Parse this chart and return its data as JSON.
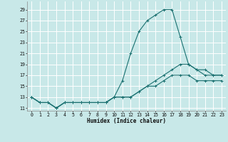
{
  "xlabel": "Humidex (Indice chaleur)",
  "background_color": "#c8e8e8",
  "grid_color": "#ffffff",
  "line_color": "#1a7070",
  "xlim": [
    -0.5,
    23.5
  ],
  "ylim": [
    10.5,
    30.5
  ],
  "xticks": [
    0,
    1,
    2,
    3,
    4,
    5,
    6,
    7,
    8,
    9,
    10,
    11,
    12,
    13,
    14,
    15,
    16,
    17,
    18,
    19,
    20,
    21,
    22,
    23
  ],
  "yticks": [
    11,
    13,
    15,
    17,
    19,
    21,
    23,
    25,
    27,
    29
  ],
  "line1_x": [
    0,
    1,
    2,
    3,
    4,
    5,
    6,
    7,
    8,
    9,
    10,
    11,
    12,
    13,
    14,
    15,
    16,
    17,
    18,
    19,
    20,
    21,
    22,
    23
  ],
  "line1_y": [
    13,
    12,
    12,
    11,
    12,
    12,
    12,
    12,
    12,
    12,
    13,
    16,
    21,
    25,
    27,
    28,
    29,
    29,
    24,
    19,
    18,
    18,
    17,
    17
  ],
  "line2_x": [
    0,
    1,
    2,
    3,
    4,
    5,
    6,
    7,
    8,
    9,
    10,
    11,
    12,
    13,
    14,
    15,
    16,
    17,
    18,
    19,
    20,
    21,
    22,
    23
  ],
  "line2_y": [
    13,
    12,
    12,
    11,
    12,
    12,
    12,
    12,
    12,
    12,
    13,
    13,
    13,
    14,
    15,
    16,
    17,
    18,
    19,
    19,
    18,
    17,
    17,
    17
  ],
  "line3_x": [
    0,
    1,
    2,
    3,
    4,
    5,
    6,
    7,
    8,
    9,
    10,
    11,
    12,
    13,
    14,
    15,
    16,
    17,
    18,
    19,
    20,
    21,
    22,
    23
  ],
  "line3_y": [
    13,
    12,
    12,
    11,
    12,
    12,
    12,
    12,
    12,
    12,
    13,
    13,
    13,
    14,
    15,
    15,
    16,
    17,
    17,
    17,
    16,
    16,
    16,
    16
  ]
}
